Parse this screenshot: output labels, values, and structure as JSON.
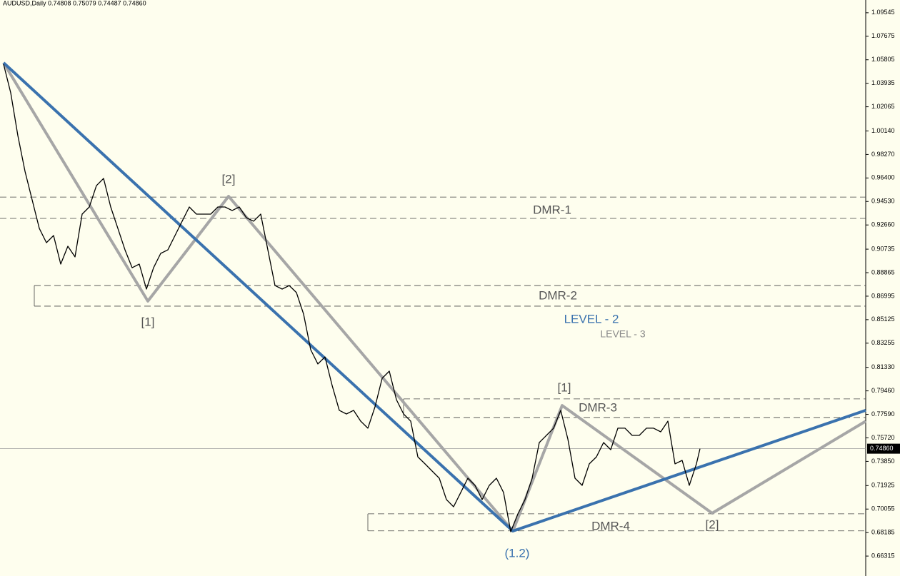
{
  "header": "AUDUSD,Daily  0.74808 0.75079 0.74487 0.74860",
  "chart_data": {
    "type": "line",
    "xlim": [
      0,
      1212
    ],
    "ylim": [
      0.6473,
      1.1056
    ],
    "yticks": [
      1.09545,
      1.07675,
      1.05805,
      1.03935,
      1.02065,
      {
        "value": 1.0014,
        "label": "1.00140"
      },
      {
        "value": 0.9827,
        "label": "0.98270"
      },
      {
        "value": 0.964,
        "label": "0.96400"
      },
      {
        "value": 0.9453,
        "label": "0.94530"
      },
      {
        "value": 0.9266,
        "label": "0.92660"
      },
      0.90735,
      0.88865,
      0.86995,
      0.85125,
      0.83255,
      {
        "value": 0.8133,
        "label": "0.81330"
      },
      {
        "value": 0.7946,
        "label": "0.79460"
      },
      {
        "value": 0.7759,
        "label": "0.77590"
      },
      {
        "value": 0.7572,
        "label": "0.75720"
      },
      {
        "value": 0.7385,
        "label": "0.73850"
      },
      0.71925,
      0.70055,
      0.68185,
      0.66315
    ],
    "x": [
      5,
      15,
      25,
      35,
      45,
      55,
      65,
      75,
      85,
      95,
      105,
      115,
      125,
      135,
      145,
      155,
      165,
      175,
      185,
      195,
      205,
      215,
      225,
      235,
      245,
      255,
      265,
      275,
      285,
      295,
      305,
      315,
      325,
      335,
      345,
      355,
      365,
      375,
      385,
      395,
      405,
      415,
      425,
      435,
      445,
      455,
      465,
      475,
      485,
      495,
      505,
      515,
      525,
      535,
      545,
      555,
      565,
      575,
      585,
      595,
      605,
      615,
      625,
      635,
      645,
      655,
      665,
      675,
      685,
      695,
      705,
      715,
      725,
      735,
      745,
      755,
      765,
      775,
      785,
      795,
      805,
      815,
      825,
      835,
      845,
      855,
      865,
      875,
      885,
      895,
      905,
      915,
      925,
      935,
      945,
      955,
      965,
      975,
      980
    ],
    "series": [
      {
        "color": "#000000",
        "values": [
          1.0545,
          1.0318,
          0.9977,
          0.9693,
          0.9466,
          0.9239,
          0.9125,
          0.9182,
          0.8955,
          0.9097,
          0.9012,
          0.9352,
          0.9409,
          0.9579,
          0.9636,
          0.9409,
          0.9239,
          0.9068,
          0.8926,
          0.8955,
          0.8756,
          0.8926,
          0.904,
          0.9068,
          0.9182,
          0.9296,
          0.9409,
          0.9352,
          0.9352,
          0.9352,
          0.9409,
          0.9409,
          0.9381,
          0.9409,
          0.9324,
          0.9296,
          0.9352,
          0.9068,
          0.8784,
          0.8756,
          0.8784,
          0.8728,
          0.8557,
          0.8273,
          0.816,
          0.8216,
          0.7989,
          0.7791,
          0.7762,
          0.7791,
          0.7705,
          0.7649,
          0.7819,
          0.8046,
          0.8103,
          0.7876,
          0.7762,
          0.7705,
          0.7421,
          0.7365,
          0.7308,
          0.7251,
          0.7081,
          0.7024,
          0.7137,
          0.7251,
          0.7194,
          0.7081,
          0.7194,
          0.7251,
          0.7137,
          0.6825,
          0.6967,
          0.7081,
          0.7251,
          0.7535,
          0.7592,
          0.7649,
          0.7791,
          0.7563,
          0.7251,
          0.7194,
          0.7365,
          0.7421,
          0.7535,
          0.7478,
          0.7649,
          0.7649,
          0.7592,
          0.7592,
          0.7649,
          0.7649,
          0.762,
          0.7705,
          0.7365,
          0.7393,
          0.7194,
          0.7365,
          0.7486
        ]
      }
    ],
    "waves": [
      {
        "color": "#a6a6a6",
        "x": [
          5,
          207,
          320,
          718,
          787,
          997,
          1212
        ],
        "values": [
          1.0556,
          0.866,
          0.9494,
          0.6831,
          0.783,
          0.6973,
          0.7705
        ]
      },
      {
        "color": "#3a72ae",
        "x": [
          5,
          718,
          1212
        ],
        "values": [
          1.0556,
          0.6831,
          0.7791
        ]
      }
    ],
    "levels": [
      {
        "value": 0.9488,
        "x_start": 0
      },
      {
        "value": 0.9318,
        "x_start": 0
      },
      {
        "value": 0.8784,
        "x_start": 48
      },
      {
        "value": 0.862,
        "x_start": 48
      },
      {
        "value": 0.7882,
        "x_start": 565
      },
      {
        "value": 0.7734,
        "x_start": 565
      },
      {
        "value": 0.6968,
        "x_start": 515
      },
      {
        "value": 0.6832,
        "x_start": 515
      }
    ],
    "last_price": {
      "value": 0.7486,
      "label": "0.74860"
    },
    "annotations": [
      {
        "text": "[2]",
        "color": "#555555"
      },
      {
        "text": "DMR-1",
        "color": "#555555"
      },
      {
        "text": "DMR-2",
        "color": "#555555"
      },
      {
        "text": "[1]",
        "color": "#555555"
      },
      {
        "text": "LEVEL - 2",
        "color": "#3a72ae"
      },
      {
        "text": "LEVEL - 3",
        "color": "#8a8a8a"
      },
      {
        "text": "[1]",
        "color": "#555555"
      },
      {
        "text": "DMR-3",
        "color": "#555555"
      },
      {
        "text": "DMR-4",
        "color": "#555555"
      },
      {
        "text": "(1.2)",
        "color": "#3a72ae"
      },
      {
        "text": "[2]",
        "color": "#555555"
      }
    ]
  }
}
